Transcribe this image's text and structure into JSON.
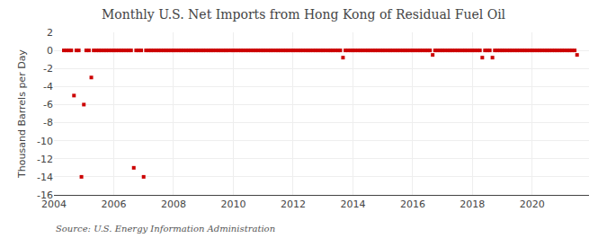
{
  "chart_data": {
    "type": "scatter",
    "title": "Monthly U.S. Net Imports from Hong Kong of Residual Fuel Oil",
    "y_label": "Thousand Barrels per Day",
    "annotations": [
      "Source: U.S. Energy Information Administration"
    ],
    "color": "#cc0000",
    "marker": "square",
    "grid": true,
    "xlim": [
      2004.0,
      2021.9
    ],
    "xticks": [
      2004,
      2006,
      2008,
      2010,
      2012,
      2014,
      2016,
      2018,
      2020
    ],
    "ylim": [
      -16,
      2
    ],
    "yticks": [
      2,
      0,
      -2,
      -4,
      -6,
      -8,
      -10,
      -12,
      -14,
      -16
    ],
    "x": [
      2004.33,
      2004.42,
      2004.5,
      2004.58,
      2004.67,
      2004.75,
      2004.83,
      2004.92,
      2005.0,
      2005.08,
      2005.17,
      2005.25,
      2005.33,
      2005.42,
      2005.5,
      2005.58,
      2005.67,
      2005.75,
      2005.83,
      2005.92,
      2006.0,
      2006.08,
      2006.17,
      2006.25,
      2006.33,
      2006.42,
      2006.5,
      2006.58,
      2006.67,
      2006.75,
      2006.83,
      2006.92,
      2007.0,
      2007.08,
      2007.17,
      2007.25,
      2007.33,
      2007.42,
      2007.5,
      2007.58,
      2007.67,
      2007.75,
      2007.83,
      2007.92,
      2008.0,
      2008.08,
      2008.17,
      2008.25,
      2008.33,
      2008.42,
      2008.5,
      2008.58,
      2008.67,
      2008.75,
      2008.83,
      2008.92,
      2009.0,
      2009.08,
      2009.17,
      2009.25,
      2009.33,
      2009.42,
      2009.5,
      2009.58,
      2009.67,
      2009.75,
      2009.83,
      2009.92,
      2010.0,
      2010.08,
      2010.17,
      2010.25,
      2010.33,
      2010.42,
      2010.5,
      2010.58,
      2010.67,
      2010.75,
      2010.83,
      2010.92,
      2011.0,
      2011.08,
      2011.17,
      2011.25,
      2011.33,
      2011.42,
      2011.5,
      2011.58,
      2011.67,
      2011.75,
      2011.83,
      2011.92,
      2012.0,
      2012.08,
      2012.17,
      2012.25,
      2012.33,
      2012.42,
      2012.5,
      2012.58,
      2012.67,
      2012.75,
      2012.83,
      2012.92,
      2013.0,
      2013.08,
      2013.17,
      2013.25,
      2013.33,
      2013.42,
      2013.5,
      2013.58,
      2013.67,
      2013.75,
      2013.83,
      2013.92,
      2014.0,
      2014.08,
      2014.17,
      2014.25,
      2014.33,
      2014.42,
      2014.5,
      2014.58,
      2014.67,
      2014.75,
      2014.83,
      2014.92,
      2015.0,
      2015.08,
      2015.17,
      2015.25,
      2015.33,
      2015.42,
      2015.5,
      2015.58,
      2015.67,
      2015.75,
      2015.83,
      2015.92,
      2016.0,
      2016.08,
      2016.17,
      2016.25,
      2016.33,
      2016.42,
      2016.5,
      2016.58,
      2016.67,
      2016.75,
      2016.83,
      2016.92,
      2017.0,
      2017.08,
      2017.17,
      2017.25,
      2017.33,
      2017.42,
      2017.5,
      2017.58,
      2017.67,
      2017.75,
      2017.83,
      2017.92,
      2018.0,
      2018.08,
      2018.17,
      2018.25,
      2018.33,
      2018.42,
      2018.5,
      2018.58,
      2018.67,
      2018.75,
      2018.83,
      2018.92,
      2019.0,
      2019.08,
      2019.17,
      2019.25,
      2019.33,
      2019.42,
      2019.5,
      2019.58,
      2019.67,
      2019.75,
      2019.83,
      2019.92,
      2020.0,
      2020.08,
      2020.17,
      2020.25,
      2020.33,
      2020.42,
      2020.5,
      2020.58,
      2020.67,
      2020.75,
      2020.83,
      2020.92,
      2021.0,
      2021.08,
      2021.17,
      2021.25,
      2021.33,
      2021.42,
      2021.5
    ],
    "values": [
      0,
      0,
      0,
      0,
      -5.0,
      0,
      0,
      -14.0,
      -6.0,
      0,
      0,
      -3.0,
      0,
      0,
      0,
      0,
      0,
      0,
      0,
      0,
      0,
      0,
      0,
      0,
      0,
      0,
      0,
      0,
      -13.0,
      0,
      0,
      0,
      -14.0,
      0,
      0,
      0,
      0,
      0,
      0,
      0,
      0,
      0,
      0,
      0,
      0,
      0,
      0,
      0,
      0,
      0,
      0,
      0,
      0,
      0,
      0,
      0,
      0,
      0,
      0,
      0,
      0,
      0,
      0,
      0,
      0,
      0,
      0,
      0,
      0,
      0,
      0,
      0,
      0,
      0,
      0,
      0,
      0,
      0,
      0,
      0,
      0,
      0,
      0,
      0,
      0,
      0,
      0,
      0,
      0,
      0,
      0,
      0,
      0,
      0,
      0,
      0,
      0,
      0,
      0,
      0,
      0,
      0,
      0,
      0,
      0,
      0,
      0,
      0,
      0,
      0,
      0,
      0,
      -0.8,
      0,
      0,
      0,
      0,
      0,
      0,
      0,
      0,
      0,
      0,
      0,
      0,
      0,
      0,
      0,
      0,
      0,
      0,
      0,
      0,
      0,
      0,
      0,
      0,
      0,
      0,
      0,
      0,
      0,
      0,
      0,
      0,
      0,
      0,
      0,
      -0.5,
      0,
      0,
      0,
      0,
      0,
      0,
      0,
      0,
      0,
      0,
      0,
      0,
      0,
      0,
      0,
      0,
      0,
      0,
      0,
      -0.8,
      0,
      0,
      0,
      -0.8,
      0,
      0,
      0,
      0,
      0,
      0,
      0,
      0,
      0,
      0,
      0,
      0,
      0,
      0,
      0,
      0,
      0,
      0,
      0,
      0,
      0,
      0,
      0,
      0,
      0,
      0,
      0,
      0,
      0,
      0,
      0,
      0,
      0,
      -0.5
    ]
  }
}
